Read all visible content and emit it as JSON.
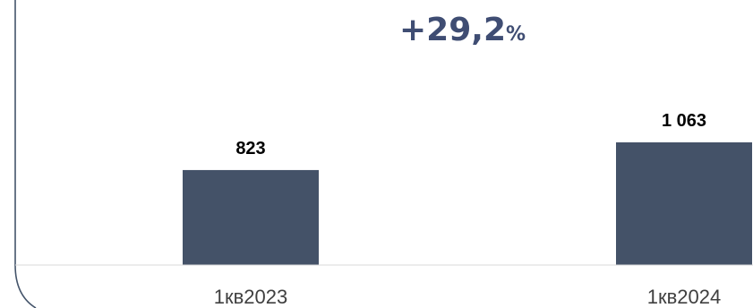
{
  "growth": {
    "value": "+29,2",
    "unit": "%"
  },
  "colors": {
    "bar": "#445268",
    "growth_text": "#3f4d73",
    "axis": "#d9d9d9",
    "frame": "#44546a",
    "label": "#000000",
    "category_text": "#404040"
  },
  "chart_data": {
    "type": "bar",
    "categories": [
      "1кв2023",
      "1кв2024"
    ],
    "values": [
      823,
      1063
    ],
    "value_labels": [
      "823",
      "1 063"
    ],
    "title": "",
    "xlabel": "",
    "ylabel": "",
    "ylim": [
      0,
      1063
    ],
    "grid": false,
    "legend": "none"
  }
}
